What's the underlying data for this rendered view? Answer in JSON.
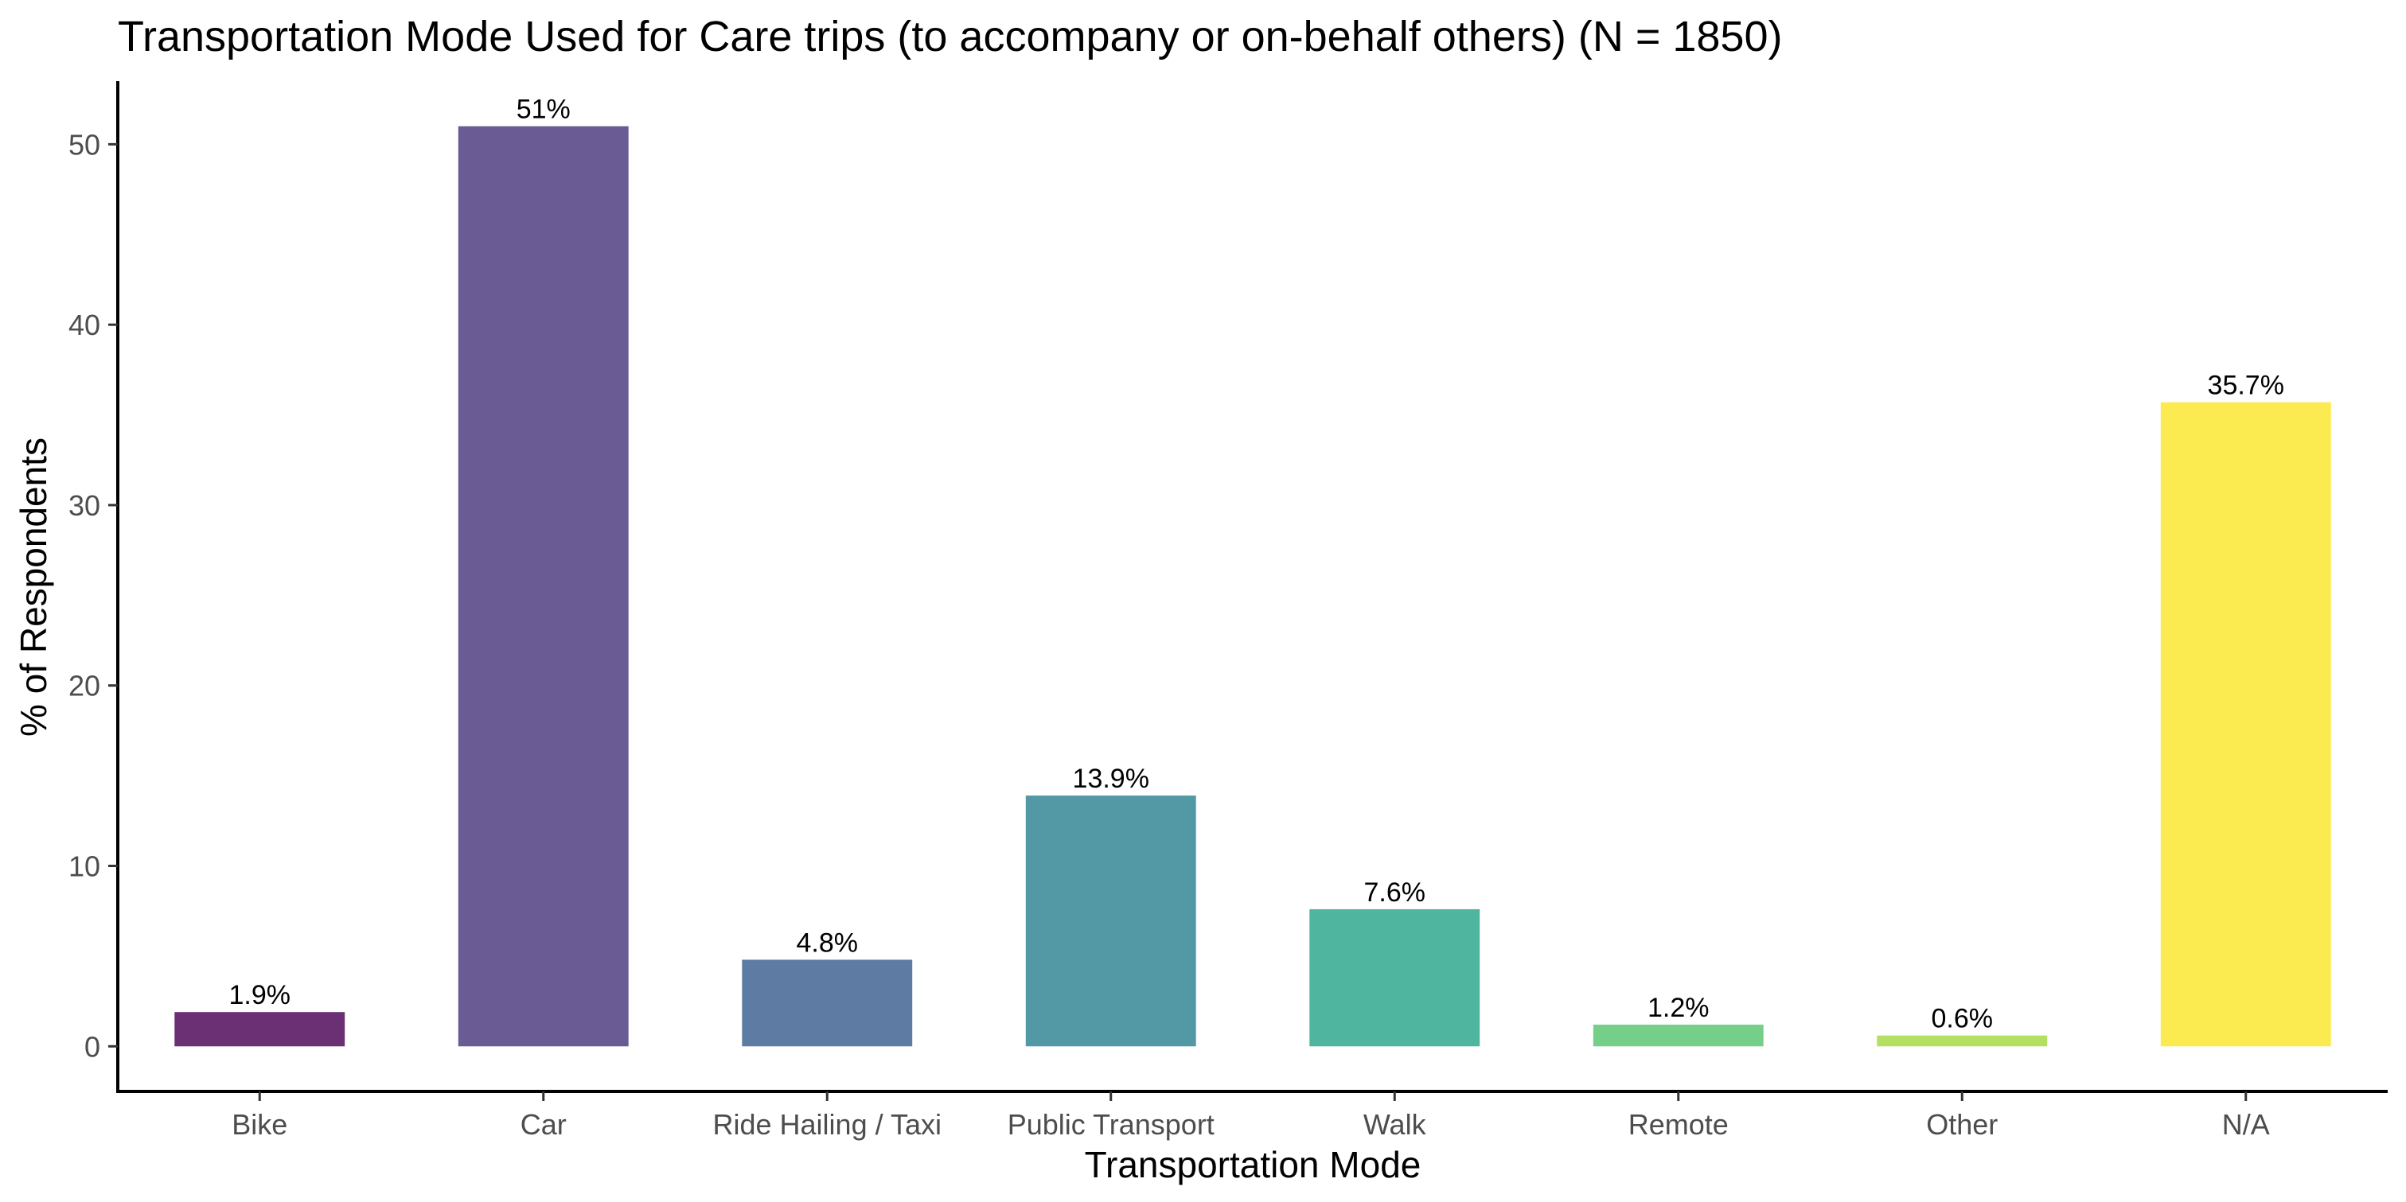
{
  "chart_data": {
    "type": "bar",
    "title": "Transportation Mode Used for Care trips (to accompany or on-behalf others) (N = 1850)",
    "xlabel": "Transportation Mode",
    "ylabel": "% of Respondents",
    "categories": [
      "Bike",
      "Car",
      "Ride Hailing / Taxi",
      "Public Transport",
      "Walk",
      "Remote",
      "Other",
      "N/A"
    ],
    "values": [
      1.9,
      51,
      4.8,
      13.9,
      7.6,
      1.2,
      0.6,
      35.7
    ],
    "data_labels": [
      "1.9%",
      "51%",
      "4.8%",
      "13.9%",
      "7.6%",
      "1.2%",
      "0.6%",
      "35.7%"
    ],
    "colors": [
      "#6b3074",
      "#6b5b94",
      "#5e7ca3",
      "#5298a5",
      "#4fb59f",
      "#76cf88",
      "#b3df62",
      "#fcea51"
    ],
    "ylim": [
      -2.5,
      53.5
    ],
    "yticks": [
      0,
      10,
      20,
      30,
      40,
      50
    ],
    "grid": false,
    "legend": "none"
  }
}
